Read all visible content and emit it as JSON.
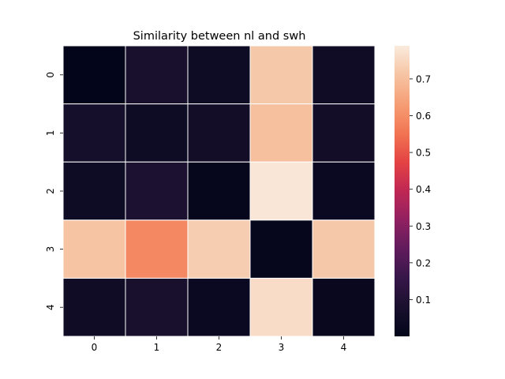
{
  "chart_data": {
    "type": "heatmap",
    "title": "Similarity between nl and swh",
    "xlabel": "",
    "ylabel": "",
    "x_categories": [
      "0",
      "1",
      "2",
      "3",
      "4"
    ],
    "y_categories": [
      "0",
      "1",
      "2",
      "3",
      "4"
    ],
    "values": [
      [
        0.0,
        0.08,
        0.04,
        0.72,
        0.05
      ],
      [
        0.07,
        0.04,
        0.06,
        0.7,
        0.06
      ],
      [
        0.04,
        0.09,
        0.01,
        0.78,
        0.03
      ],
      [
        0.71,
        0.59,
        0.73,
        0.01,
        0.72
      ],
      [
        0.05,
        0.08,
        0.03,
        0.76,
        0.02
      ]
    ],
    "colorbar": {
      "ticks": [
        "0.1",
        "0.2",
        "0.3",
        "0.4",
        "0.5",
        "0.6",
        "0.7"
      ],
      "range": [
        0.0,
        0.79
      ],
      "colormap": "rocket"
    },
    "grid": "white cell borders",
    "legend": "colorbar right"
  }
}
